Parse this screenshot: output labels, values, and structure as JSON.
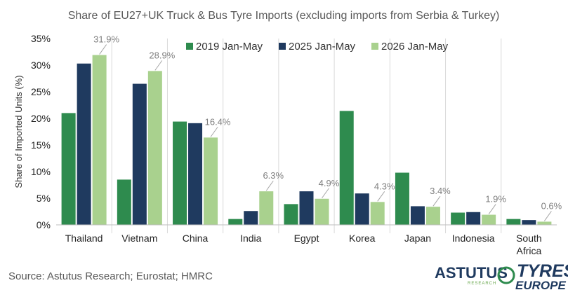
{
  "chart_data": {
    "type": "bar",
    "title": "Share of EU27+UK Truck & Bus Tyre Imports (excluding imports from Serbia & Turkey)",
    "ylabel": "Share of Imported Units (%)",
    "xlabel": "",
    "ylim": [
      0,
      35
    ],
    "yticks": [
      "0%",
      "5%",
      "10%",
      "15%",
      "20%",
      "25%",
      "30%",
      "35%"
    ],
    "categories": [
      "Thailand",
      "Vietnam",
      "China",
      "India",
      "Egypt",
      "Korea",
      "Japan",
      "Indonesia",
      "South Africa"
    ],
    "series": [
      {
        "name": "2019 Jan-May",
        "color": "#2e8b4e",
        "values": [
          21.0,
          8.5,
          19.4,
          1.1,
          3.9,
          21.4,
          9.8,
          2.3,
          1.1
        ]
      },
      {
        "name": "2025 Jan-May",
        "color": "#1f3a5f",
        "values": [
          30.3,
          26.5,
          19.1,
          2.6,
          6.3,
          5.9,
          3.5,
          2.4,
          0.9
        ]
      },
      {
        "name": "2026 Jan-May",
        "color": "#a9d18e",
        "values": [
          31.9,
          28.9,
          16.4,
          6.3,
          4.9,
          4.3,
          3.4,
          1.9,
          0.6
        ]
      }
    ],
    "data_labels": [
      "31.9%",
      "28.9%",
      "16.4%",
      "6.3%",
      "4.9%",
      "4.3%",
      "3.4%",
      "1.9%",
      "0.6%"
    ],
    "legend_position": "top-center",
    "grid": false
  },
  "footer": {
    "source": "Source: Astutus Research; Eurostat; HMRC"
  },
  "logos": {
    "astutus": "ASTUTUS",
    "astutus_sub": "RESEARCH",
    "tyres": "TYRES",
    "europe": "EUROPE"
  }
}
